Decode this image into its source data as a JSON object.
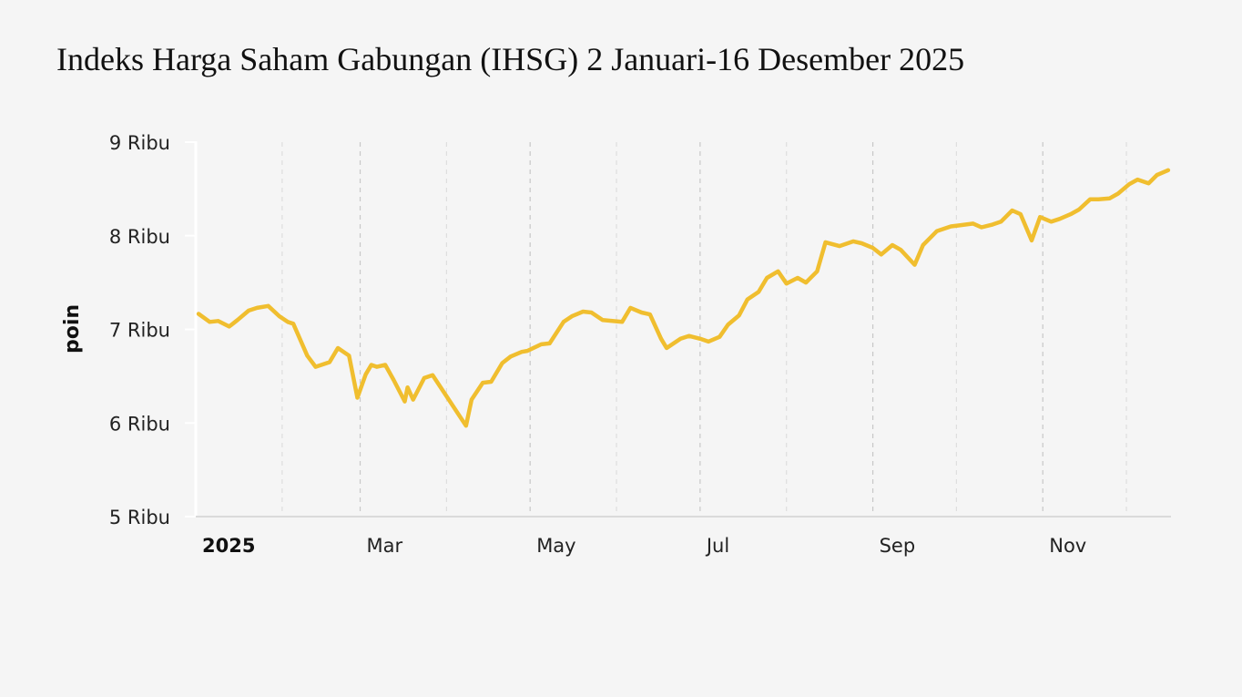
{
  "chart_data": {
    "type": "line",
    "title": "Indeks Harga Saham Gabungan (IHSG) 2 Januari-16 Desember 2025",
    "ylabel": "poin",
    "xlabel": "",
    "ylim": [
      5000,
      9000
    ],
    "y_ticks": [
      {
        "value": 9000,
        "label": "9 Ribu"
      },
      {
        "value": 8000,
        "label": "8 Ribu"
      },
      {
        "value": 7000,
        "label": "7 Ribu"
      },
      {
        "value": 6000,
        "label": "6 Ribu"
      },
      {
        "value": 5000,
        "label": "5 Ribu"
      }
    ],
    "x_range": [
      "2025-01-02",
      "2025-12-16"
    ],
    "x_ticks": [
      {
        "date": "2025-01-01",
        "label": "2025",
        "bold": true
      },
      {
        "date": "2025-03-01",
        "label": "Mar",
        "bold": false
      },
      {
        "date": "2025-05-01",
        "label": "May",
        "bold": false
      },
      {
        "date": "2025-07-01",
        "label": "Jul",
        "bold": false
      },
      {
        "date": "2025-09-01",
        "label": "Sep",
        "bold": false
      },
      {
        "date": "2025-11-01",
        "label": "Nov",
        "bold": false
      }
    ],
    "grid_months": [
      "2025-02-01",
      "2025-03-01",
      "2025-04-01",
      "2025-05-01",
      "2025-06-01",
      "2025-07-01",
      "2025-08-01",
      "2025-09-01",
      "2025-10-01",
      "2025-11-01",
      "2025-12-01"
    ],
    "grid": true,
    "line_color": "#f0be2f",
    "series": [
      {
        "x": [
          "2025-01-02",
          "2025-01-06",
          "2025-01-09",
          "2025-01-13",
          "2025-01-16",
          "2025-01-20",
          "2025-01-23",
          "2025-01-27",
          "2025-01-31",
          "2025-02-03",
          "2025-02-05",
          "2025-02-10",
          "2025-02-13",
          "2025-02-18",
          "2025-02-21",
          "2025-02-25",
          "2025-02-28",
          "2025-03-03",
          "2025-03-05",
          "2025-03-07",
          "2025-03-10",
          "2025-03-13",
          "2025-03-17",
          "2025-03-18",
          "2025-03-20",
          "2025-03-24",
          "2025-03-27",
          "2025-04-08",
          "2025-04-10",
          "2025-04-14",
          "2025-04-17",
          "2025-04-21",
          "2025-04-24",
          "2025-04-28",
          "2025-04-30",
          "2025-05-05",
          "2025-05-08",
          "2025-05-13",
          "2025-05-16",
          "2025-05-20",
          "2025-05-23",
          "2025-05-27",
          "2025-06-03",
          "2025-06-06",
          "2025-06-10",
          "2025-06-13",
          "2025-06-17",
          "2025-06-19",
          "2025-06-24",
          "2025-06-27",
          "2025-07-01",
          "2025-07-04",
          "2025-07-08",
          "2025-07-11",
          "2025-07-15",
          "2025-07-18",
          "2025-07-22",
          "2025-07-25",
          "2025-07-29",
          "2025-08-01",
          "2025-08-05",
          "2025-08-08",
          "2025-08-12",
          "2025-08-15",
          "2025-08-20",
          "2025-08-25",
          "2025-08-28",
          "2025-09-01",
          "2025-09-04",
          "2025-09-08",
          "2025-09-11",
          "2025-09-16",
          "2025-09-19",
          "2025-09-24",
          "2025-09-29",
          "2025-10-02",
          "2025-10-07",
          "2025-10-10",
          "2025-10-14",
          "2025-10-17",
          "2025-10-21",
          "2025-10-24",
          "2025-10-28",
          "2025-10-31",
          "2025-11-04",
          "2025-11-07",
          "2025-11-11",
          "2025-11-14",
          "2025-11-18",
          "2025-11-21",
          "2025-11-25",
          "2025-11-28",
          "2025-12-02",
          "2025-12-05",
          "2025-12-09",
          "2025-12-12",
          "2025-12-16"
        ],
        "values": [
          7165,
          7080,
          7090,
          7030,
          7100,
          7200,
          7230,
          7250,
          7140,
          7080,
          7060,
          6720,
          6600,
          6650,
          6800,
          6720,
          6270,
          6520,
          6620,
          6600,
          6620,
          6460,
          6230,
          6380,
          6250,
          6480,
          6510,
          5970,
          6250,
          6430,
          6440,
          6640,
          6710,
          6760,
          6770,
          6840,
          6850,
          7080,
          7140,
          7190,
          7180,
          7100,
          7080,
          7230,
          7180,
          7160,
          6900,
          6800,
          6900,
          6930,
          6900,
          6870,
          6920,
          7050,
          7150,
          7320,
          7400,
          7550,
          7620,
          7490,
          7550,
          7500,
          7620,
          7930,
          7890,
          7940,
          7920,
          7870,
          7800,
          7900,
          7850,
          7690,
          7900,
          8050,
          8100,
          8110,
          8130,
          8090,
          8120,
          8150,
          8270,
          8230,
          7950,
          8200,
          8150,
          8180,
          8230,
          8280,
          8390,
          8390,
          8400,
          8450,
          8550,
          8600,
          8560,
          8650,
          8700
        ]
      }
    ]
  }
}
